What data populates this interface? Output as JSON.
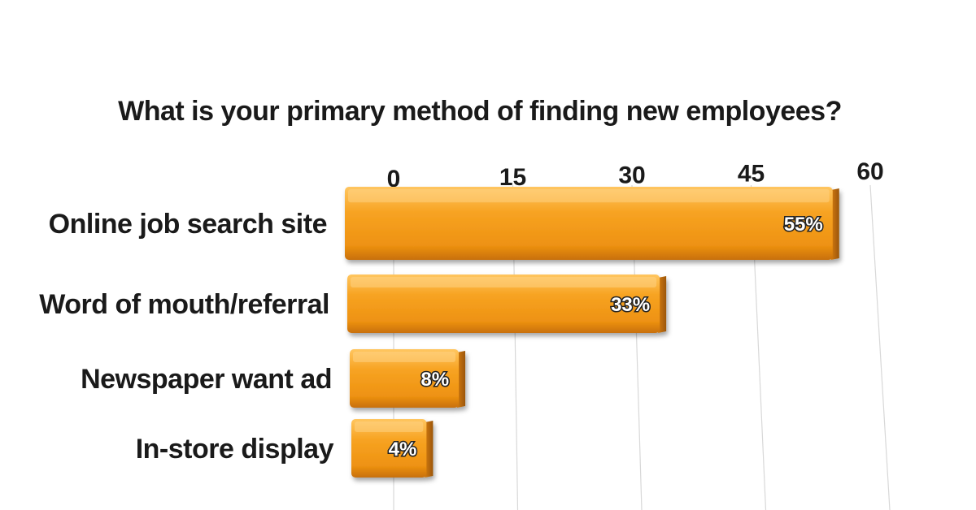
{
  "chart_data": {
    "type": "bar",
    "orientation": "horizontal",
    "title": "What is your primary method of finding new employees?",
    "categories": [
      "Online job search site",
      "Word of mouth/referral",
      "Newspaper want ad",
      "In-store display"
    ],
    "values": [
      55,
      33,
      8,
      4
    ],
    "data_labels": [
      "55%",
      "33%",
      "8%",
      "4%"
    ],
    "xlim": [
      0,
      60
    ],
    "xticks": [
      0,
      15,
      30,
      45,
      60
    ],
    "xtick_labels": [
      "0",
      "15",
      "30",
      "45",
      "60"
    ],
    "xaxis_position": "top",
    "grid": true,
    "legend": "none",
    "colors": {
      "bar_light": "#ffb43a",
      "bar_mid": "#f29a1a",
      "bar_dark": "#c8700a",
      "bar_side": "#b8640c",
      "text": "#1a1a1a",
      "label_fill": "#ffffff",
      "gridline": "#d8d8d8"
    }
  }
}
